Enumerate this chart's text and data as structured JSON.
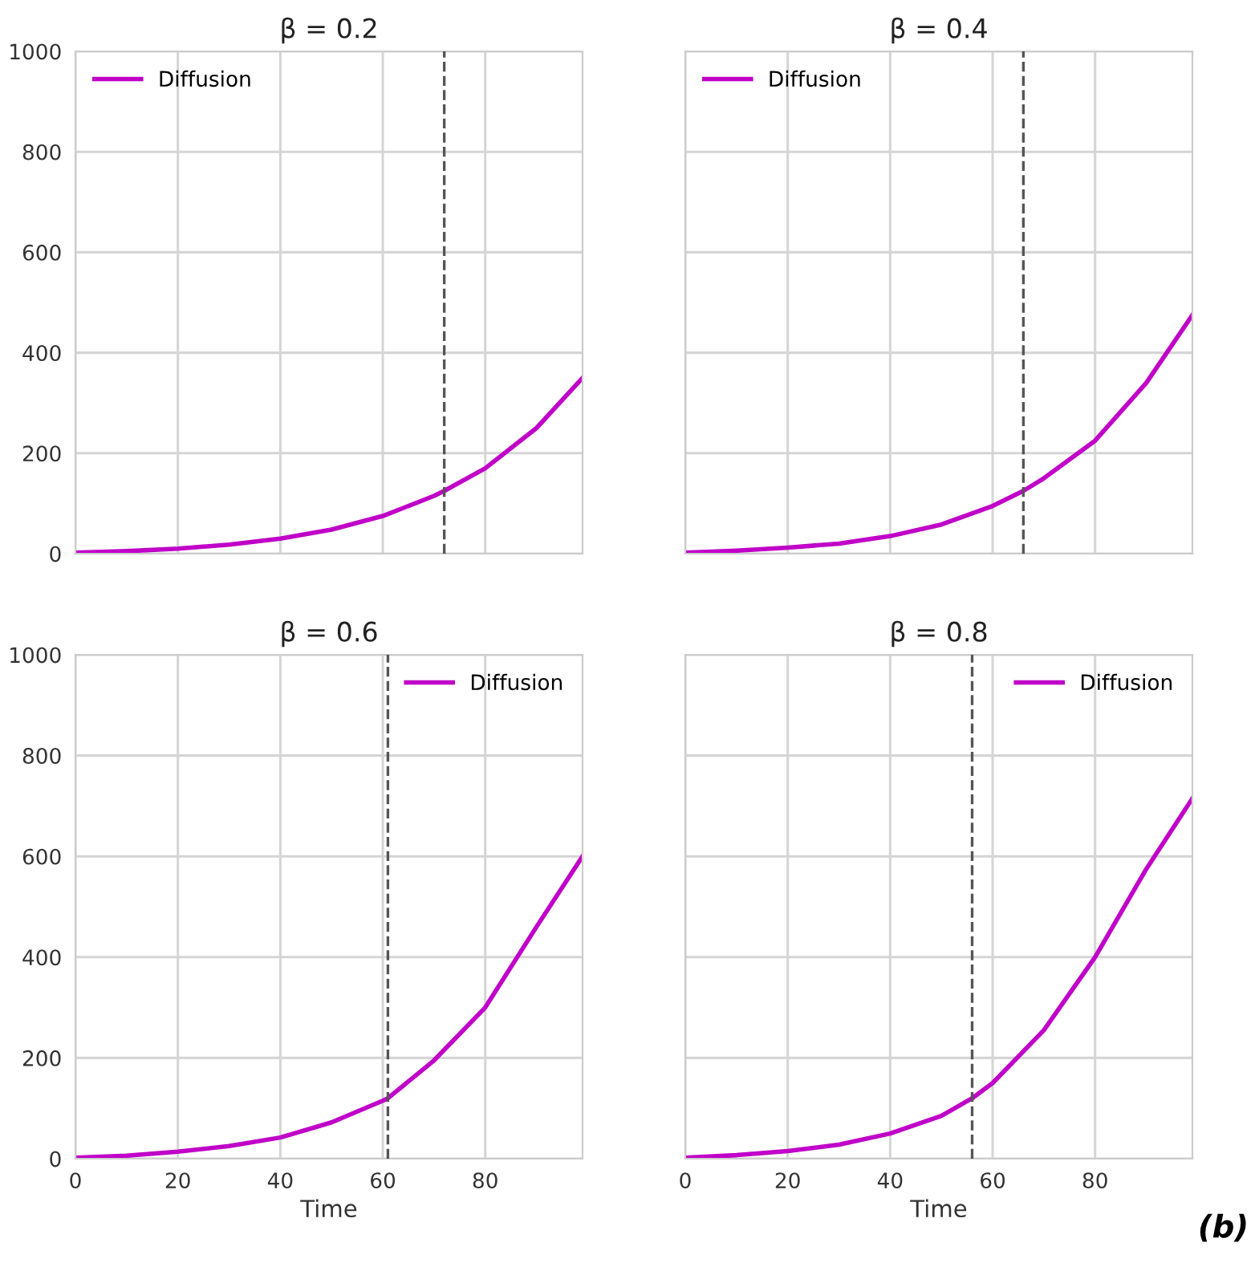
{
  "chart_data": [
    {
      "type": "line",
      "title": "β = 0.2",
      "x": [
        0,
        10,
        20,
        30,
        40,
        50,
        60,
        70,
        72,
        80,
        90,
        99
      ],
      "series": [
        {
          "name": "Diffusion",
          "color": "#c000c8",
          "values": [
            2,
            5,
            10,
            18,
            30,
            48,
            75,
            115,
            125,
            170,
            250,
            350
          ]
        }
      ],
      "xlim": [
        0,
        99
      ],
      "xticks": [
        0,
        20,
        40,
        60,
        80
      ],
      "ylim": [
        0,
        1000
      ],
      "yticks": [
        0,
        200,
        400,
        600,
        800,
        1000
      ],
      "grid": true,
      "legend": "top left",
      "tick_labels": "y",
      "ref_lines": [
        {
          "axis": "x",
          "value": 72,
          "color": "#555555",
          "line_style": "dashed"
        }
      ]
    },
    {
      "type": "line",
      "title": "β = 0.4",
      "x": [
        0,
        10,
        20,
        30,
        40,
        50,
        60,
        66,
        70,
        80,
        90,
        99
      ],
      "series": [
        {
          "name": "Diffusion",
          "color": "#c000c8",
          "values": [
            2,
            6,
            12,
            20,
            35,
            58,
            95,
            125,
            150,
            225,
            340,
            475
          ]
        }
      ],
      "xlim": [
        0,
        99
      ],
      "xticks": [
        0,
        20,
        40,
        60,
        80
      ],
      "ylim": [
        0,
        1000
      ],
      "yticks": [
        0,
        200,
        400,
        600,
        800,
        1000
      ],
      "grid": true,
      "legend": "top left",
      "tick_labels": false,
      "ref_lines": [
        {
          "axis": "x",
          "value": 66,
          "color": "#555555",
          "line_style": "dashed"
        }
      ]
    },
    {
      "type": "line",
      "title": "β = 0.6",
      "xlabel": "Time",
      "x": [
        0,
        10,
        20,
        30,
        40,
        50,
        60,
        61,
        70,
        80,
        90,
        99
      ],
      "series": [
        {
          "name": "Diffusion",
          "color": "#c000c8",
          "values": [
            2,
            6,
            14,
            25,
            42,
            72,
            115,
            120,
            195,
            300,
            460,
            600
          ]
        }
      ],
      "xlim": [
        0,
        99
      ],
      "xticks": [
        0,
        20,
        40,
        60,
        80
      ],
      "ylim": [
        0,
        1000
      ],
      "yticks": [
        0,
        200,
        400,
        600,
        800,
        1000
      ],
      "grid": true,
      "legend": "top right",
      "ref_lines": [
        {
          "axis": "x",
          "value": 61,
          "color": "#555555",
          "line_style": "dashed"
        }
      ]
    },
    {
      "type": "line",
      "title": "β = 0.8",
      "xlabel": "Time",
      "x": [
        0,
        10,
        20,
        30,
        40,
        50,
        56,
        60,
        70,
        80,
        90,
        99
      ],
      "series": [
        {
          "name": "Diffusion",
          "color": "#c000c8",
          "values": [
            2,
            7,
            15,
            28,
            50,
            85,
            120,
            150,
            255,
            400,
            575,
            715
          ]
        }
      ],
      "xlim": [
        0,
        99
      ],
      "xticks": [
        0,
        20,
        40,
        60,
        80
      ],
      "ylim": [
        0,
        1000
      ],
      "yticks": [
        0,
        200,
        400,
        600,
        800,
        1000
      ],
      "grid": true,
      "legend": "top right",
      "tick_labels": "x",
      "ref_lines": [
        {
          "axis": "x",
          "value": 56,
          "color": "#555555",
          "line_style": "dashed"
        }
      ],
      "annotations": [
        "(b)"
      ]
    }
  ]
}
